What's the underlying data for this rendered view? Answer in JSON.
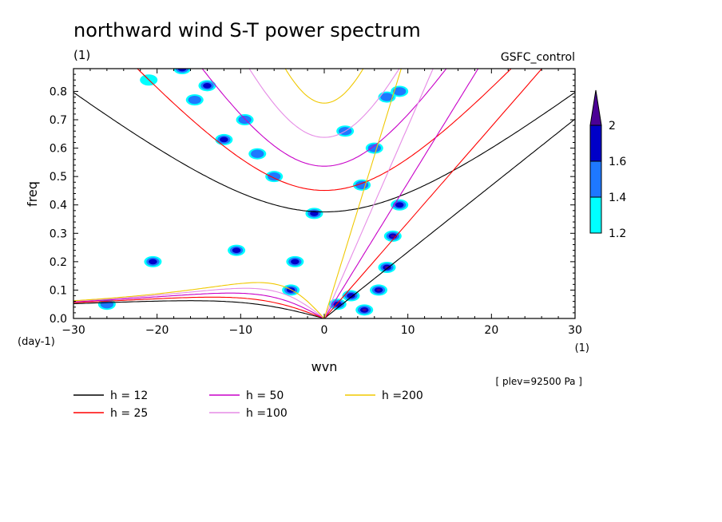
{
  "chart_data": {
    "type": "heatmap",
    "title": "northward wind S-T power spectrum",
    "subtitle_left": "(1)",
    "subtitle_right": "GSFC_control",
    "xlabel": "wvn",
    "ylabel": "freq",
    "x_units": "(1)",
    "y_units": "(day-1)",
    "annotation": "[ plev=92500 Pa ]",
    "xlim": [
      -30,
      30
    ],
    "ylim": [
      0,
      0.88
    ],
    "xticks": [
      -30,
      -20,
      -10,
      0,
      10,
      20,
      30
    ],
    "yticks": [
      0.0,
      0.1,
      0.2,
      0.3,
      0.4,
      0.5,
      0.6,
      0.7,
      0.8
    ],
    "xtick_labels": [
      "−30",
      "−20",
      "−10",
      "0",
      "10",
      "20",
      "30"
    ],
    "ytick_labels": [
      "0.0",
      "0.1",
      "0.2",
      "0.3",
      "0.4",
      "0.5",
      "0.6",
      "0.7",
      "0.8"
    ],
    "colorbar": {
      "levels": [
        1.2,
        1.4,
        1.6,
        2
      ],
      "labels": [
        "1.2",
        "1.4",
        "1.6",
        "2"
      ],
      "colors": [
        "#00ffff",
        "#1e78ff",
        "#0000c8",
        "#4b0096"
      ]
    },
    "dispersion_curves": [
      {
        "label": "h = 12",
        "h": 12,
        "color": "#000000"
      },
      {
        "label": "h = 25",
        "h": 25,
        "color": "#ff0000"
      },
      {
        "label": "h = 50",
        "h": 50,
        "color": "#c800c8"
      },
      {
        "label": "h =100",
        "h": 100,
        "color": "#e68ce6"
      },
      {
        "label": "h =200",
        "h": 200,
        "color": "#f0c800"
      }
    ],
    "spectral_peaks": [
      {
        "x": 7.5,
        "y": 0.18,
        "level": 2
      },
      {
        "x": 6.5,
        "y": 0.1,
        "level": 2
      },
      {
        "x": 8.2,
        "y": 0.29,
        "level": 2
      },
      {
        "x": 9.0,
        "y": 0.4,
        "level": 1.6
      },
      {
        "x": 4.8,
        "y": 0.03,
        "level": 2
      },
      {
        "x": 3.2,
        "y": 0.08,
        "level": 1.6
      },
      {
        "x": 1.6,
        "y": 0.05,
        "level": 1.6
      },
      {
        "x": -4.0,
        "y": 0.1,
        "level": 1.6
      },
      {
        "x": -1.2,
        "y": 0.37,
        "level": 1.6
      },
      {
        "x": -10.5,
        "y": 0.24,
        "level": 1.6
      },
      {
        "x": -12.0,
        "y": 0.63,
        "level": 1.6
      },
      {
        "x": -9.5,
        "y": 0.7,
        "level": 1.4
      },
      {
        "x": -15.5,
        "y": 0.77,
        "level": 1.4
      },
      {
        "x": -20.5,
        "y": 0.2,
        "level": 1.6
      },
      {
        "x": -14.0,
        "y": 0.82,
        "level": 1.6
      },
      {
        "x": 6.0,
        "y": 0.6,
        "level": 1.4
      },
      {
        "x": 7.5,
        "y": 0.78,
        "level": 1.4
      },
      {
        "x": -6.0,
        "y": 0.5,
        "level": 1.4
      },
      {
        "x": -3.5,
        "y": 0.2,
        "level": 1.6
      },
      {
        "x": -17.0,
        "y": 0.88,
        "level": 1.6
      },
      {
        "x": 4.5,
        "y": 0.47,
        "level": 1.4
      },
      {
        "x": -8.0,
        "y": 0.58,
        "level": 1.4
      },
      {
        "x": 2.5,
        "y": 0.66,
        "level": 1.4
      },
      {
        "x": -21.0,
        "y": 0.84,
        "level": 1.2
      },
      {
        "x": 9.0,
        "y": 0.8,
        "level": 1.4
      },
      {
        "x": -26.0,
        "y": 0.05,
        "level": 1.4
      }
    ]
  }
}
